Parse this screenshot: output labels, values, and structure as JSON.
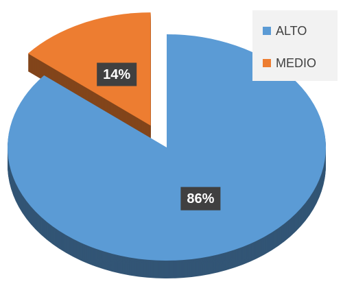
{
  "chart_data": {
    "type": "pie",
    "categories": [
      "ALTO",
      "MEDIO"
    ],
    "values": [
      86,
      14
    ],
    "value_labels": [
      "86%",
      "14%"
    ],
    "colors": [
      "#5b9bd5",
      "#ed7d31"
    ],
    "legend": "top-right",
    "exploded": [
      false,
      true
    ]
  }
}
